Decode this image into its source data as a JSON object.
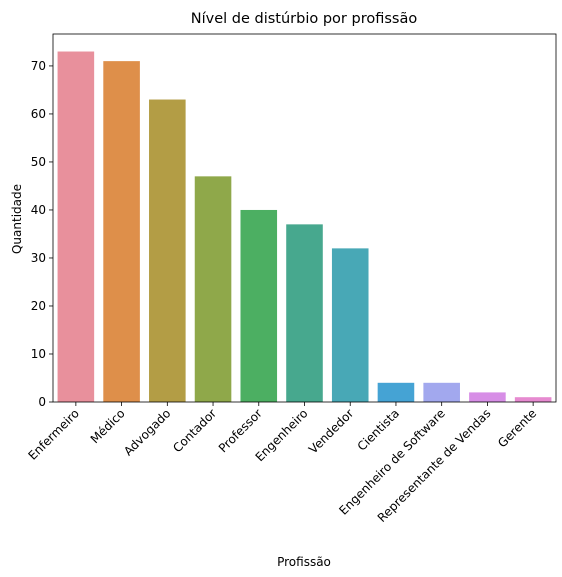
{
  "chart_data": {
    "type": "bar",
    "title": "Nível de distúrbio por profissão",
    "xlabel": "Profissão",
    "ylabel": "Quantidade",
    "categories": [
      "Enfermeiro",
      "Médico",
      "Advogado",
      "Contador",
      "Professor",
      "Engenheiro",
      "Vendedor",
      "Cientista",
      "Engenheiro de Software",
      "Representante de Vendas",
      "Gerente"
    ],
    "values": [
      73,
      71,
      63,
      47,
      40,
      37,
      32,
      4,
      4,
      2,
      1
    ],
    "colors": [
      "#e8909c",
      "#de8f4a",
      "#b39d45",
      "#8fa84a",
      "#4caf62",
      "#47a88e",
      "#48a8b6",
      "#45a3d4",
      "#a2a8ee",
      "#d78ee6",
      "#e68ad0"
    ],
    "ylim": [
      0,
      76.65
    ],
    "yticks": [
      0,
      10,
      20,
      30,
      40,
      50,
      60,
      70
    ],
    "grid": false,
    "legend": "none"
  }
}
